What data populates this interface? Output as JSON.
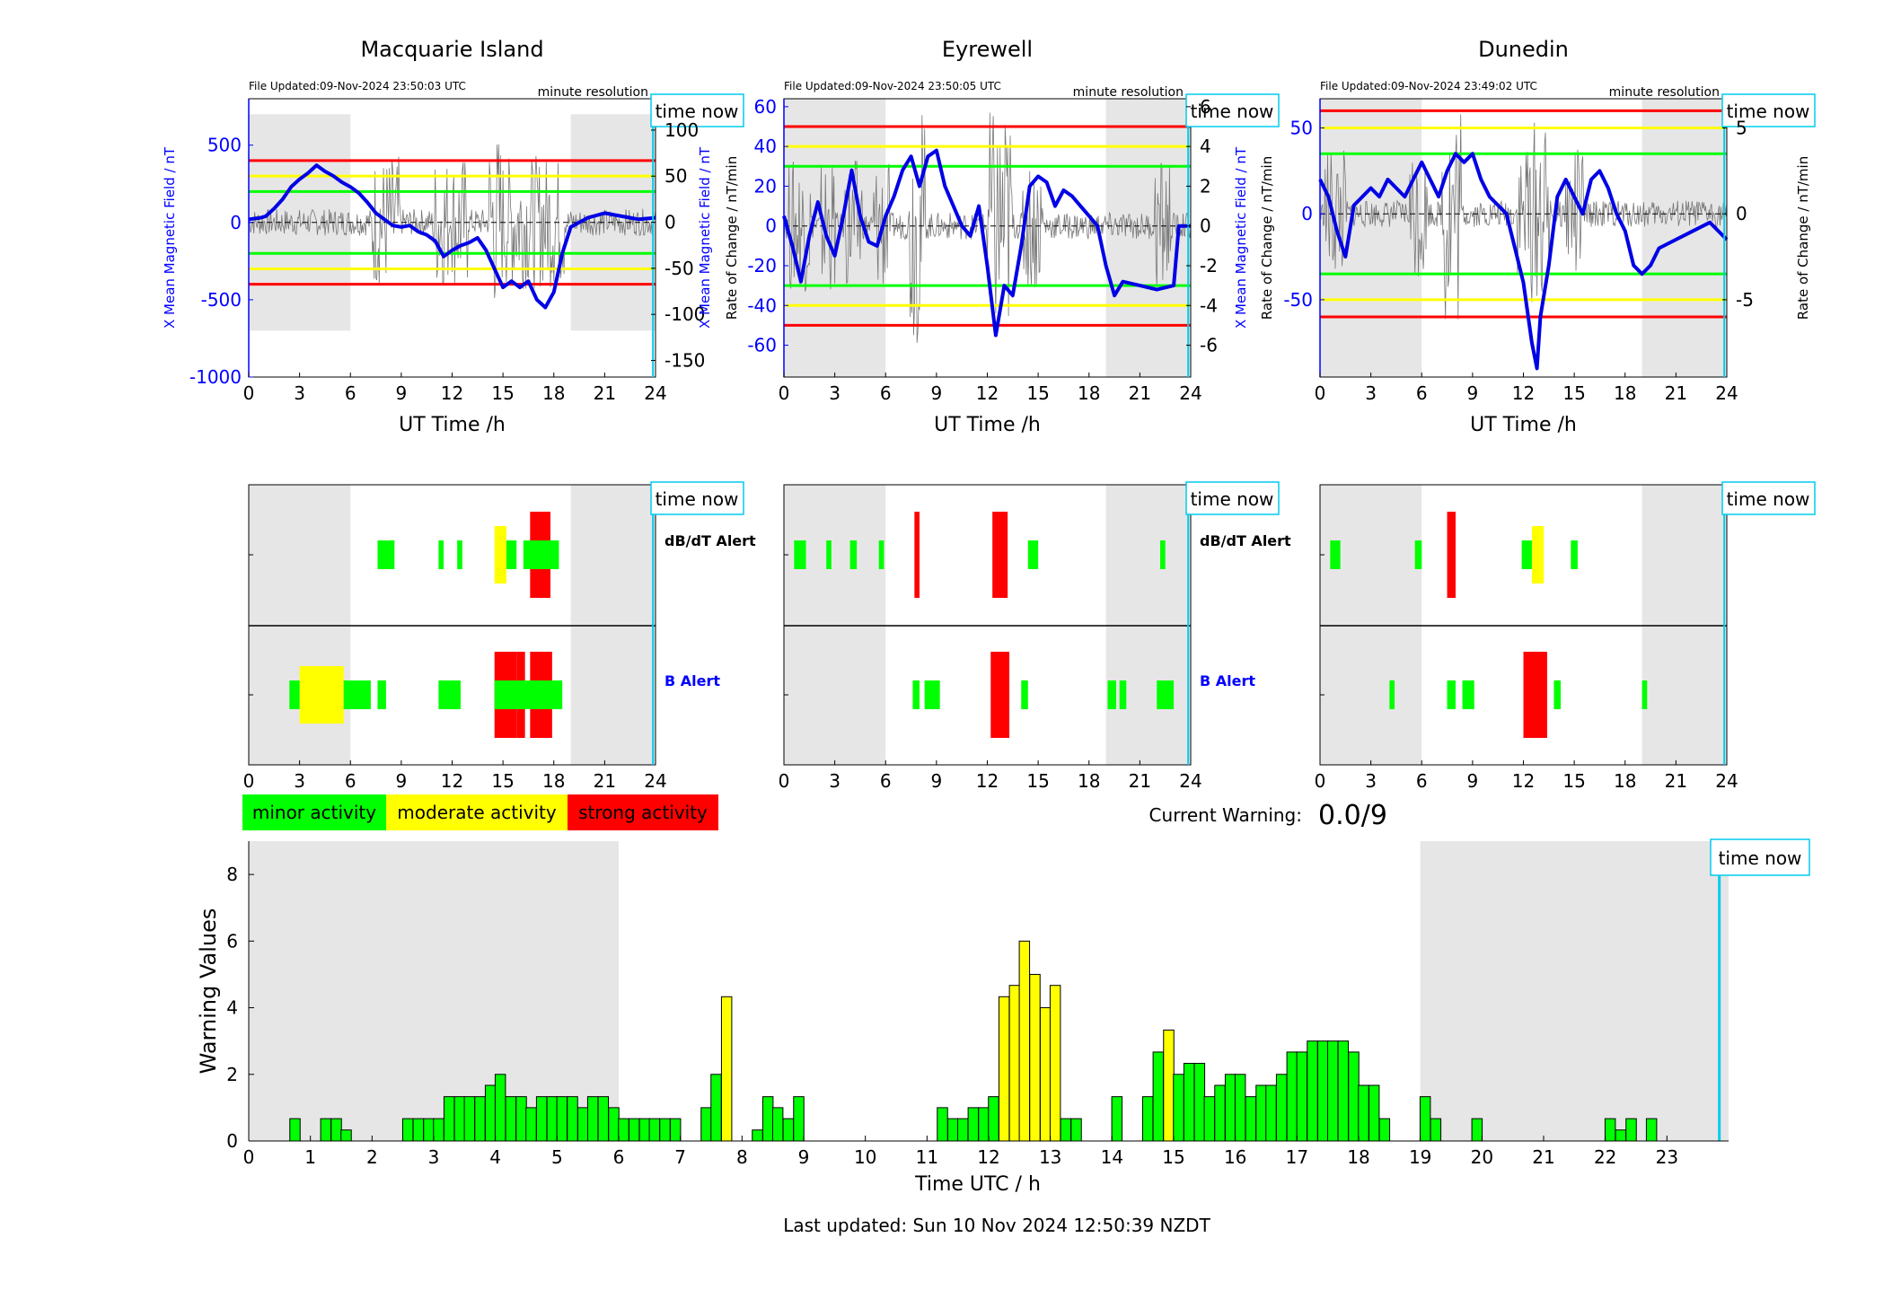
{
  "stations": [
    {
      "name": "Macquarie Island",
      "file_updated": "File Updated:09-Nov-2024 23:50:03 UTC",
      "resolution": "minute resolution",
      "time_now_label": "time now",
      "left_ylabel": "X Mean Magnetic Field / nT",
      "right_ylabel": "Rate of Change / nT/min",
      "xlabel": "UT Time /h",
      "left_ylim": [
        -1000,
        800
      ],
      "left_ticks": [
        -1000,
        -500,
        0,
        500
      ],
      "right_ylim": [
        -168,
        134
      ],
      "right_ticks": [
        -150,
        -100,
        -50,
        0,
        50,
        100
      ],
      "thresholds": {
        "red": 400,
        "yellow": 300,
        "green": 200
      },
      "shade_ranges": [
        [
          0,
          6
        ],
        [
          19,
          24
        ]
      ],
      "shade_ylim": [
        -700,
        700
      ],
      "field_curve": [
        [
          0,
          20
        ],
        [
          0.7,
          30
        ],
        [
          1,
          40
        ],
        [
          1.5,
          90
        ],
        [
          2,
          150
        ],
        [
          2.5,
          230
        ],
        [
          3,
          280
        ],
        [
          3.5,
          320
        ],
        [
          4,
          370
        ],
        [
          4.5,
          330
        ],
        [
          5,
          300
        ],
        [
          5.5,
          260
        ],
        [
          6,
          230
        ],
        [
          6.5,
          190
        ],
        [
          7,
          130
        ],
        [
          7.5,
          60
        ],
        [
          8,
          20
        ],
        [
          8.5,
          -20
        ],
        [
          9,
          -30
        ],
        [
          9.5,
          -20
        ],
        [
          10,
          -60
        ],
        [
          10.5,
          -80
        ],
        [
          11,
          -120
        ],
        [
          11.5,
          -220
        ],
        [
          12,
          -180
        ],
        [
          12.5,
          -150
        ],
        [
          13,
          -130
        ],
        [
          13.5,
          -100
        ],
        [
          14,
          -180
        ],
        [
          14.5,
          -300
        ],
        [
          15,
          -420
        ],
        [
          15.5,
          -380
        ],
        [
          16,
          -420
        ],
        [
          16.5,
          -380
        ],
        [
          17,
          -500
        ],
        [
          17.5,
          -550
        ],
        [
          18,
          -450
        ],
        [
          18.5,
          -200
        ],
        [
          19,
          -30
        ],
        [
          19.5,
          0
        ],
        [
          20,
          30
        ],
        [
          21,
          60
        ],
        [
          22,
          40
        ],
        [
          23,
          20
        ],
        [
          24,
          30
        ]
      ],
      "dbdt_blocks": [
        {
          "start": 7.6,
          "end": 8.6,
          "level": 1
        },
        {
          "start": 11.2,
          "end": 11.5,
          "level": 1
        },
        {
          "start": 12.3,
          "end": 12.6,
          "level": 1
        },
        {
          "start": 14.5,
          "end": 15.2,
          "level": 2
        },
        {
          "start": 15.2,
          "end": 15.8,
          "level": 1
        },
        {
          "start": 16.6,
          "end": 17.8,
          "level": 3
        },
        {
          "start": 16.2,
          "end": 18.3,
          "level": 1
        }
      ],
      "b_blocks": [
        {
          "start": 2.4,
          "end": 3.0,
          "level": 1
        },
        {
          "start": 3.0,
          "end": 5.6,
          "level": 2
        },
        {
          "start": 5.6,
          "end": 7.2,
          "level": 1
        },
        {
          "start": 7.6,
          "end": 8.1,
          "level": 1
        },
        {
          "start": 11.2,
          "end": 12.5,
          "level": 1
        },
        {
          "start": 14.5,
          "end": 15.8,
          "level": 3
        },
        {
          "start": 15.8,
          "end": 16.3,
          "level": 3
        },
        {
          "start": 16.6,
          "end": 17.9,
          "level": 3
        },
        {
          "start": 14.5,
          "end": 18.5,
          "level": 1
        }
      ]
    },
    {
      "name": "Eyrewell",
      "file_updated": "File Updated:09-Nov-2024 23:50:05 UTC",
      "resolution": "minute resolution",
      "time_now_label": "time now",
      "left_ylabel": "X Mean Magnetic Field / nT",
      "right_ylabel": "Rate of Change / nT/min",
      "xlabel": "UT Time /h",
      "left_ylim": [
        -76,
        64
      ],
      "left_ticks": [
        -60,
        -40,
        -20,
        0,
        20,
        40,
        60
      ],
      "right_ylim": [
        -7.6,
        6.4
      ],
      "right_ticks": [
        -6,
        -4,
        -2,
        0,
        2,
        4,
        6
      ],
      "thresholds": {
        "red": 50,
        "yellow": 40,
        "green": 30
      },
      "shade_ranges": [
        [
          0,
          6
        ],
        [
          19,
          24
        ]
      ],
      "shade_ylim": [
        -76,
        64
      ],
      "field_curve": [
        [
          0,
          5
        ],
        [
          0.5,
          -10
        ],
        [
          1,
          -28
        ],
        [
          1.5,
          -5
        ],
        [
          2,
          12
        ],
        [
          2.5,
          -5
        ],
        [
          3,
          -15
        ],
        [
          3.5,
          5
        ],
        [
          4,
          28
        ],
        [
          4.5,
          5
        ],
        [
          5,
          -8
        ],
        [
          5.5,
          -10
        ],
        [
          6,
          5
        ],
        [
          6.5,
          15
        ],
        [
          7,
          28
        ],
        [
          7.5,
          35
        ],
        [
          8,
          20
        ],
        [
          8.5,
          35
        ],
        [
          9,
          38
        ],
        [
          9.5,
          20
        ],
        [
          10,
          10
        ],
        [
          10.5,
          0
        ],
        [
          11,
          -5
        ],
        [
          11.5,
          10
        ],
        [
          12,
          -20
        ],
        [
          12.5,
          -55
        ],
        [
          13,
          -30
        ],
        [
          13.5,
          -35
        ],
        [
          14,
          -10
        ],
        [
          14.5,
          20
        ],
        [
          15,
          25
        ],
        [
          15.5,
          22
        ],
        [
          16,
          10
        ],
        [
          16.5,
          18
        ],
        [
          17,
          15
        ],
        [
          17.5,
          10
        ],
        [
          18,
          5
        ],
        [
          18.5,
          0
        ],
        [
          19,
          -20
        ],
        [
          19.5,
          -35
        ],
        [
          20,
          -28
        ],
        [
          21,
          -30
        ],
        [
          22,
          -32
        ],
        [
          23,
          -30
        ],
        [
          23.3,
          0
        ],
        [
          24,
          0
        ]
      ],
      "dbdt_blocks": [
        {
          "start": 0.6,
          "end": 1.3,
          "level": 1
        },
        {
          "start": 2.5,
          "end": 2.8,
          "level": 1
        },
        {
          "start": 3.9,
          "end": 4.3,
          "level": 1
        },
        {
          "start": 5.6,
          "end": 5.9,
          "level": 1
        },
        {
          "start": 7.7,
          "end": 8.0,
          "level": 3
        },
        {
          "start": 12.3,
          "end": 13.2,
          "level": 3
        },
        {
          "start": 14.4,
          "end": 15.0,
          "level": 1
        },
        {
          "start": 22.2,
          "end": 22.5,
          "level": 1
        }
      ],
      "b_blocks": [
        {
          "start": 7.6,
          "end": 8.0,
          "level": 1
        },
        {
          "start": 8.3,
          "end": 9.2,
          "level": 1
        },
        {
          "start": 12.2,
          "end": 13.3,
          "level": 3
        },
        {
          "start": 14.0,
          "end": 14.4,
          "level": 1
        },
        {
          "start": 19.1,
          "end": 19.6,
          "level": 1
        },
        {
          "start": 19.8,
          "end": 20.2,
          "level": 1
        },
        {
          "start": 22.0,
          "end": 23.0,
          "level": 1
        }
      ]
    },
    {
      "name": "Dunedin",
      "file_updated": "File Updated:09-Nov-2024 23:49:02 UTC",
      "resolution": "minute resolution",
      "time_now_label": "time now",
      "left_ylabel": "X Mean Magnetic Field / nT",
      "right_ylabel": "Rate of Change / nT/min",
      "xlabel": "UT Time /h",
      "left_ylim": [
        -95,
        67
      ],
      "left_ticks": [
        -50,
        0,
        50
      ],
      "right_ylim": [
        -9.5,
        6.7
      ],
      "right_ticks": [
        -5,
        0,
        5
      ],
      "thresholds": {
        "red": 60,
        "yellow": 50,
        "green": 35
      },
      "shade_ranges": [
        [
          0,
          6
        ],
        [
          19,
          24
        ]
      ],
      "shade_ylim": [
        -95,
        67
      ],
      "field_curve": [
        [
          0,
          20
        ],
        [
          0.5,
          10
        ],
        [
          1,
          -10
        ],
        [
          1.5,
          -25
        ],
        [
          2,
          5
        ],
        [
          2.5,
          10
        ],
        [
          3,
          15
        ],
        [
          3.5,
          10
        ],
        [
          4,
          20
        ],
        [
          4.5,
          15
        ],
        [
          5,
          10
        ],
        [
          5.5,
          20
        ],
        [
          6,
          30
        ],
        [
          6.5,
          20
        ],
        [
          7,
          10
        ],
        [
          7.5,
          25
        ],
        [
          8,
          35
        ],
        [
          8.5,
          30
        ],
        [
          9,
          35
        ],
        [
          9.5,
          20
        ],
        [
          10,
          10
        ],
        [
          10.5,
          5
        ],
        [
          11,
          0
        ],
        [
          11.5,
          -20
        ],
        [
          12,
          -40
        ],
        [
          12.5,
          -75
        ],
        [
          12.8,
          -90
        ],
        [
          13,
          -60
        ],
        [
          13.5,
          -30
        ],
        [
          14,
          10
        ],
        [
          14.5,
          20
        ],
        [
          15,
          10
        ],
        [
          15.5,
          0
        ],
        [
          16,
          20
        ],
        [
          16.5,
          25
        ],
        [
          17,
          15
        ],
        [
          17.5,
          0
        ],
        [
          18,
          -10
        ],
        [
          18.5,
          -30
        ],
        [
          19,
          -35
        ],
        [
          19.5,
          -30
        ],
        [
          20,
          -20
        ],
        [
          21,
          -15
        ],
        [
          22,
          -10
        ],
        [
          23,
          -5
        ],
        [
          24,
          -15
        ]
      ],
      "dbdt_blocks": [
        {
          "start": 0.6,
          "end": 1.2,
          "level": 1
        },
        {
          "start": 5.6,
          "end": 6.0,
          "level": 1
        },
        {
          "start": 7.5,
          "end": 8.0,
          "level": 3
        },
        {
          "start": 11.9,
          "end": 12.5,
          "level": 1
        },
        {
          "start": 12.5,
          "end": 13.2,
          "level": 2
        },
        {
          "start": 14.8,
          "end": 15.2,
          "level": 1
        }
      ],
      "b_blocks": [
        {
          "start": 4.1,
          "end": 4.4,
          "level": 1
        },
        {
          "start": 7.5,
          "end": 8.0,
          "level": 1
        },
        {
          "start": 8.4,
          "end": 9.1,
          "level": 1
        },
        {
          "start": 12.0,
          "end": 13.4,
          "level": 3
        },
        {
          "start": 13.8,
          "end": 14.2,
          "level": 1
        },
        {
          "start": 19.0,
          "end": 19.3,
          "level": 1
        }
      ]
    }
  ],
  "alert_labels": {
    "dbdt": "dB/dT Alert",
    "b": "B Alert"
  },
  "alert_colors": {
    "1": "#00ff00",
    "2": "#ffff00",
    "3": "#ff0000"
  },
  "legend": [
    {
      "label": "minor activity",
      "color": "#00ff00"
    },
    {
      "label": "moderate activity",
      "color": "#ffff00"
    },
    {
      "label": "strong activity",
      "color": "#ff0000"
    }
  ],
  "current_warning_label": "Current Warning:",
  "current_warning_value": "0.0/9",
  "time_now_hour": 23.85,
  "chart_data": {
    "type": "bar",
    "title": "",
    "xlabel": "Time UTC / h",
    "ylabel": "Warning Values",
    "xlim": [
      0,
      24
    ],
    "ylim": [
      0,
      9
    ],
    "x_ticks": [
      0,
      1,
      2,
      3,
      4,
      5,
      6,
      7,
      8,
      9,
      10,
      11,
      12,
      13,
      14,
      15,
      16,
      17,
      18,
      19,
      20,
      21,
      22,
      23
    ],
    "y_ticks": [
      0,
      2,
      4,
      6,
      8
    ],
    "bar_width_h": 0.167,
    "shade_ranges": [
      [
        0,
        6
      ],
      [
        19,
        24
      ]
    ],
    "time_now_label": "time now",
    "bars": [
      [
        0.75,
        0.67,
        1
      ],
      [
        1.25,
        0.67,
        1
      ],
      [
        1.42,
        0.67,
        1
      ],
      [
        1.58,
        0.33,
        1
      ],
      [
        2.58,
        0.67,
        1
      ],
      [
        2.75,
        0.67,
        1
      ],
      [
        2.92,
        0.67,
        1
      ],
      [
        3.08,
        0.67,
        1
      ],
      [
        3.25,
        1.33,
        1
      ],
      [
        3.42,
        1.33,
        1
      ],
      [
        3.58,
        1.33,
        1
      ],
      [
        3.75,
        1.33,
        1
      ],
      [
        3.92,
        1.67,
        1
      ],
      [
        4.08,
        2,
        1
      ],
      [
        4.25,
        1.33,
        1
      ],
      [
        4.42,
        1.33,
        1
      ],
      [
        4.58,
        1,
        1
      ],
      [
        4.75,
        1.33,
        1
      ],
      [
        4.92,
        1.33,
        1
      ],
      [
        5.08,
        1.33,
        1
      ],
      [
        5.25,
        1.33,
        1
      ],
      [
        5.42,
        1,
        1
      ],
      [
        5.58,
        1.33,
        1
      ],
      [
        5.75,
        1.33,
        1
      ],
      [
        5.92,
        1,
        1
      ],
      [
        6.08,
        0.67,
        1
      ],
      [
        6.25,
        0.67,
        1
      ],
      [
        6.42,
        0.67,
        1
      ],
      [
        6.58,
        0.67,
        1
      ],
      [
        6.75,
        0.67,
        1
      ],
      [
        6.92,
        0.67,
        1
      ],
      [
        7.42,
        1,
        1
      ],
      [
        7.58,
        2,
        1
      ],
      [
        7.75,
        4.33,
        2
      ],
      [
        8.25,
        0.33,
        1
      ],
      [
        8.42,
        1.33,
        1
      ],
      [
        8.58,
        1,
        1
      ],
      [
        8.75,
        0.67,
        1
      ],
      [
        8.92,
        1.33,
        1
      ],
      [
        11.25,
        1,
        1
      ],
      [
        11.42,
        0.67,
        1
      ],
      [
        11.58,
        0.67,
        1
      ],
      [
        11.75,
        1,
        1
      ],
      [
        11.92,
        1,
        1
      ],
      [
        12.08,
        1.33,
        1
      ],
      [
        12.25,
        4.33,
        2
      ],
      [
        12.42,
        4.67,
        2
      ],
      [
        12.58,
        6,
        2
      ],
      [
        12.75,
        5,
        2
      ],
      [
        12.92,
        4,
        2
      ],
      [
        13.08,
        4.67,
        2
      ],
      [
        13.25,
        0.67,
        1
      ],
      [
        13.42,
        0.67,
        1
      ],
      [
        14.08,
        1.33,
        1
      ],
      [
        14.58,
        1.33,
        1
      ],
      [
        14.75,
        2.67,
        1
      ],
      [
        14.92,
        3.33,
        2
      ],
      [
        15.08,
        2,
        1
      ],
      [
        15.25,
        2.33,
        1
      ],
      [
        15.42,
        2.33,
        1
      ],
      [
        15.58,
        1.33,
        1
      ],
      [
        15.75,
        1.67,
        1
      ],
      [
        15.92,
        2,
        1
      ],
      [
        16.08,
        2,
        1
      ],
      [
        16.25,
        1.33,
        1
      ],
      [
        16.42,
        1.67,
        1
      ],
      [
        16.58,
        1.67,
        1
      ],
      [
        16.75,
        2,
        1
      ],
      [
        16.92,
        2.67,
        1
      ],
      [
        17.08,
        2.67,
        1
      ],
      [
        17.25,
        3,
        1
      ],
      [
        17.42,
        3,
        1
      ],
      [
        17.58,
        3,
        1
      ],
      [
        17.75,
        3,
        1
      ],
      [
        17.92,
        2.67,
        1
      ],
      [
        18.08,
        1.67,
        1
      ],
      [
        18.25,
        1.67,
        1
      ],
      [
        18.42,
        0.67,
        1
      ],
      [
        19.08,
        1.33,
        1
      ],
      [
        19.25,
        0.67,
        1
      ],
      [
        19.92,
        0.67,
        1
      ],
      [
        22.08,
        0.67,
        1
      ],
      [
        22.25,
        0.33,
        1
      ],
      [
        22.42,
        0.67,
        1
      ],
      [
        22.75,
        0.67,
        1
      ]
    ]
  },
  "footer": "Last updated: Sun 10 Nov 2024 12:50:39 NZDT"
}
